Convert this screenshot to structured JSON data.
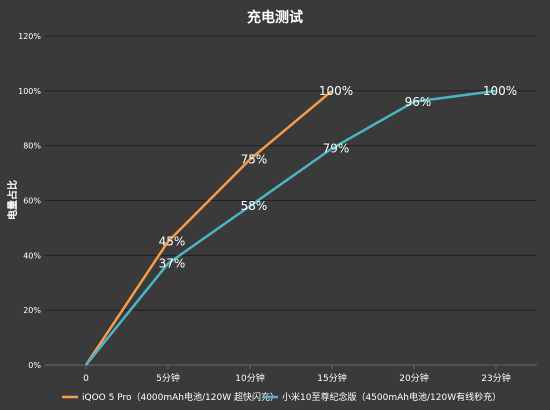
{
  "chart_data": {
    "type": "line",
    "title": "充电测试",
    "xlabel": "",
    "ylabel": "电量占比",
    "ylim": [
      0,
      120
    ],
    "yticks": [
      "0%",
      "20%",
      "40%",
      "60%",
      "80%",
      "100%",
      "120%"
    ],
    "categories": [
      "0",
      "5分钟",
      "10分钟",
      "15分钟",
      "20分钟",
      "23分钟"
    ],
    "grid": true,
    "legend_position": "bottom",
    "series": [
      {
        "name": "iQOO 5 Pro（4000mAh电池/120W 超快闪充）",
        "color": "#f39c4a",
        "values": [
          0,
          45,
          75,
          100,
          null,
          null
        ],
        "labels": [
          "",
          "45%",
          "75%",
          "100%",
          "",
          ""
        ]
      },
      {
        "name": "小米10至尊纪念版（4500mAh电池/120W有线秒充）",
        "color": "#4bb5c6",
        "values": [
          0,
          37,
          58,
          79,
          96,
          100
        ],
        "labels": [
          "",
          "37%",
          "58%",
          "79%",
          "96%",
          "100%"
        ]
      }
    ]
  }
}
